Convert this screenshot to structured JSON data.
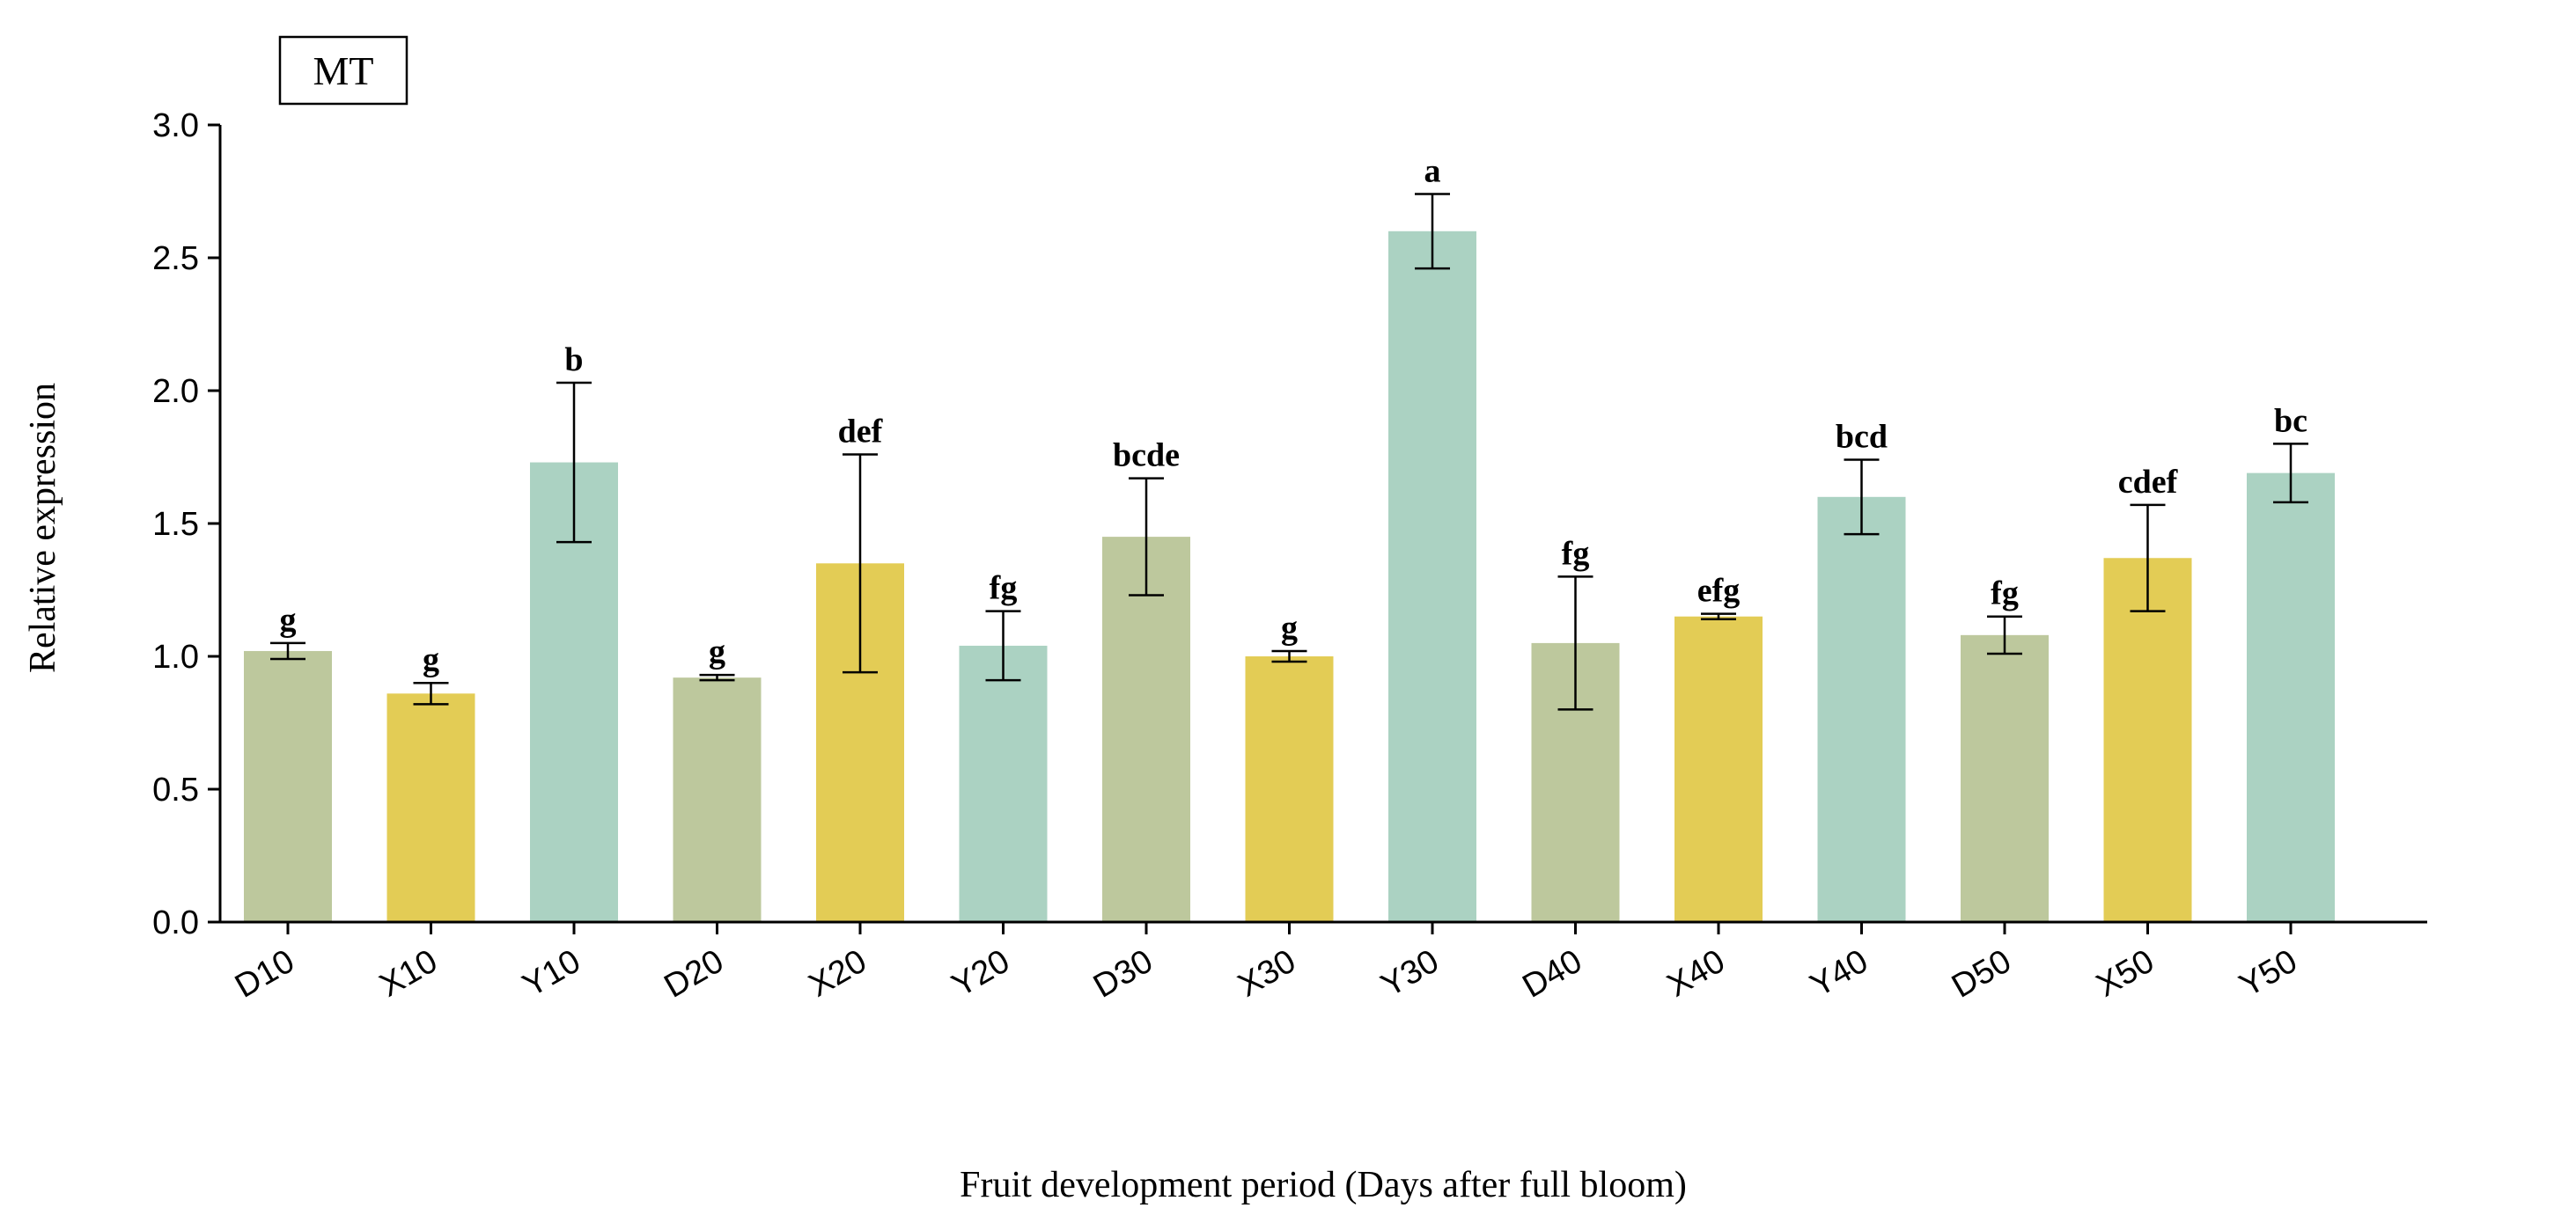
{
  "chart_data": {
    "type": "bar",
    "title": "MT",
    "xlabel": "Fruit development period (Days after full bloom)",
    "ylabel": "Relative expression",
    "ylim": [
      0,
      3.0
    ],
    "yticks": [
      0.0,
      0.5,
      1.0,
      1.5,
      2.0,
      2.5,
      3.0
    ],
    "ytick_labels": [
      "0.0",
      "0.5",
      "1.0",
      "1.5",
      "2.0",
      "2.5",
      "3.0"
    ],
    "categories": [
      "D10",
      "X10",
      "Y10",
      "D20",
      "X20",
      "Y20",
      "D30",
      "X30",
      "Y30",
      "D40",
      "X40",
      "Y40",
      "D50",
      "X50",
      "Y50"
    ],
    "values": [
      1.02,
      0.86,
      1.73,
      0.92,
      1.35,
      1.04,
      1.45,
      1.0,
      2.6,
      1.05,
      1.15,
      1.6,
      1.08,
      1.37,
      1.69
    ],
    "errors": [
      0.03,
      0.04,
      0.3,
      0.01,
      0.41,
      0.13,
      0.22,
      0.02,
      0.14,
      0.25,
      0.01,
      0.14,
      0.07,
      0.2,
      0.11
    ],
    "significance": [
      "g",
      "g",
      "b",
      "g",
      "def",
      "fg",
      "bcde",
      "g",
      "a",
      "fg",
      "efg",
      "bcd",
      "fg",
      "cdef",
      "bc"
    ],
    "colors": {
      "D": "#bdc89d",
      "X": "#e3cc55",
      "Y": "#abd2c2"
    },
    "bar_groups": [
      "D",
      "X",
      "Y",
      "D",
      "X",
      "Y",
      "D",
      "X",
      "Y",
      "D",
      "X",
      "Y",
      "D",
      "X",
      "Y"
    ]
  }
}
